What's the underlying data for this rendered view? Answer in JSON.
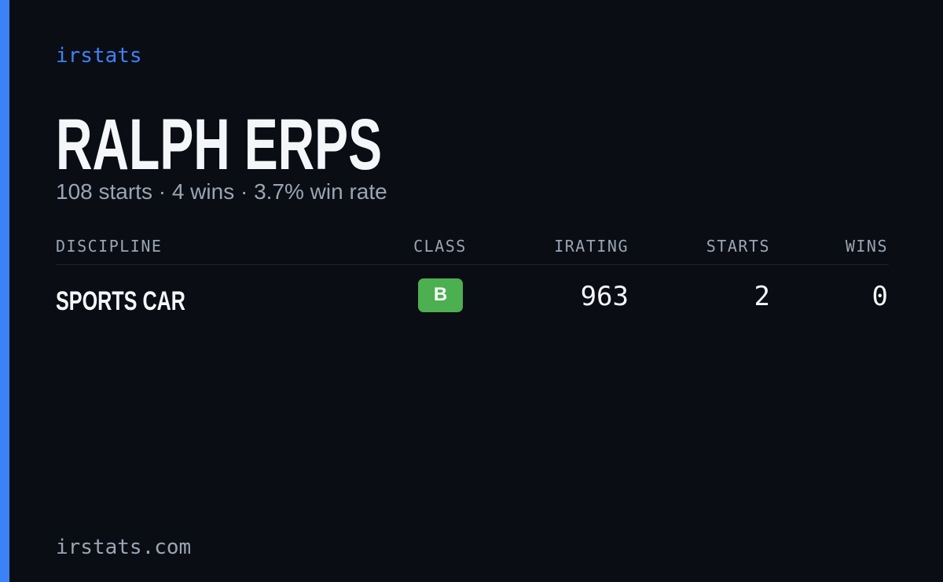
{
  "brand": "irstats",
  "driver": {
    "name": "RALPH ERPS",
    "summary": "108 starts · 4 wins · 3.7% win rate"
  },
  "table": {
    "headers": [
      "DISCIPLINE",
      "CLASS",
      "IRATING",
      "STARTS",
      "WINS"
    ],
    "rows": [
      [
        "SPORTS CAR",
        "B",
        "963",
        "2",
        "0"
      ]
    ]
  },
  "footer": "irstats.com"
}
